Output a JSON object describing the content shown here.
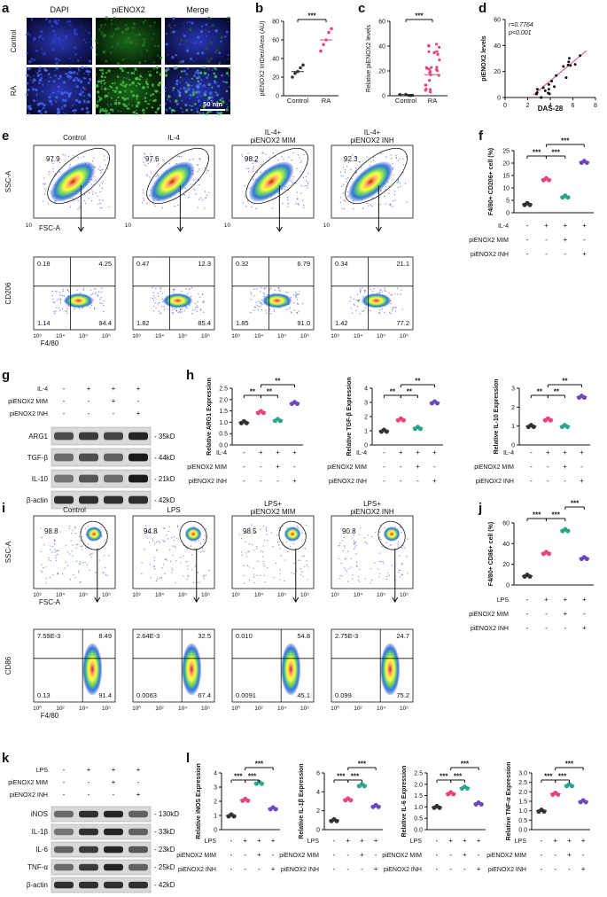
{
  "panels": {
    "a": {
      "label": "a",
      "columns": [
        "DAPI",
        "piENOX2",
        "Merge"
      ],
      "rows": [
        "Control",
        "RA"
      ],
      "scale_bar": "50 nm"
    },
    "b": {
      "label": "b",
      "chart_data": {
        "type": "scatter",
        "ylabel": "piENOX2 IntDen/Area (AU)",
        "categories": [
          "Control",
          "RA"
        ],
        "yticks": [
          "0",
          "20",
          "40",
          "60",
          "80"
        ],
        "ylim": [
          0,
          80
        ],
        "means": [
          26,
          60
        ],
        "significance": "***"
      }
    },
    "c": {
      "label": "c",
      "chart_data": {
        "type": "scatter",
        "ylabel": "Relative piENOX2 levels",
        "categories": [
          "Control",
          "RA"
        ],
        "yticks": [
          "0",
          "20",
          "40",
          "60"
        ],
        "ylim": [
          0,
          60
        ],
        "means": [
          1,
          17
        ],
        "significance": "***"
      }
    },
    "d": {
      "label": "d",
      "chart_data": {
        "type": "scatter",
        "xlabel": "DAS-28",
        "ylabel": "piENOX2 levels",
        "xticks": [
          "0",
          "2",
          "4",
          "6",
          "8"
        ],
        "yticks": [
          "0",
          "20",
          "40",
          "60"
        ],
        "annot_r": "r=0.7764",
        "annot_p": "p<0.001"
      }
    },
    "e": {
      "label": "e",
      "groups": [
        "Control",
        "IL-4",
        "IL-4+ piENOX2 MIM",
        "IL-4+ piENOX2 INH"
      ],
      "top_gate": [
        "97.9",
        "97.6",
        "98.2",
        "92.3"
      ],
      "top_xlabel": "FSC-A",
      "top_ylabel": "SSC-A",
      "bottom_xlabel": "F4/80",
      "bottom_ylabel": "CD206",
      "quadrants": [
        {
          "ul": "0.18",
          "ur": "4.25",
          "ll": "1.14",
          "lr": "94.4"
        },
        {
          "ul": "0.47",
          "ur": "12.3",
          "ll": "1.82",
          "lr": "85.4"
        },
        {
          "ul": "0.32",
          "ur": "6.79",
          "ll": "1.85",
          "lr": "91.0"
        },
        {
          "ul": "0.34",
          "ur": "21.1",
          "ll": "1.42",
          "lr": "77.2"
        }
      ]
    },
    "f": {
      "label": "f",
      "chart_data": {
        "type": "scatter",
        "ylabel": "F4/80+ CD206+ cell (%)",
        "yticks": [
          "0",
          "5",
          "10",
          "15",
          "20",
          "25"
        ],
        "ylim": [
          0,
          25
        ],
        "values": [
          3.5,
          13.5,
          6.5,
          20.5
        ],
        "colors": [
          "#333333",
          "#e8457a",
          "#2aa58a",
          "#6a4bbd"
        ]
      },
      "row_labels": [
        "IL-4",
        "piENOX2 MIM",
        "piENOX2 INH"
      ],
      "signs": [
        [
          "-",
          "+",
          "+",
          "+"
        ],
        [
          "-",
          "-",
          "+",
          "-"
        ],
        [
          "-",
          "-",
          "-",
          "+"
        ]
      ]
    },
    "g": {
      "label": "g",
      "row_labels": [
        "IL-4",
        "piENOX2 MIM",
        "piENOX2 INH"
      ],
      "signs": [
        [
          "-",
          "+",
          "+",
          "+"
        ],
        [
          "-",
          "-",
          "+",
          "-"
        ],
        [
          "-",
          "-",
          "-",
          "+"
        ]
      ],
      "blots": [
        {
          "name": "ARG1",
          "size": "35kD"
        },
        {
          "name": "TGF-β",
          "size": "44kD"
        },
        {
          "name": "IL-10",
          "size": "21kD"
        },
        {
          "name": "β-actin",
          "size": "42kD"
        }
      ]
    },
    "h": {
      "label": "h",
      "charts": [
        {
          "ylabel": "Relative ARG1 Expression",
          "yticks": [
            "0.0",
            "0.5",
            "1.0",
            "1.5",
            "2.0",
            "2.5"
          ],
          "ylim": [
            0,
            2.5
          ],
          "values": [
            1.0,
            1.45,
            1.1,
            1.85
          ]
        },
        {
          "ylabel": "Relative TGF-β Expression",
          "yticks": [
            "0",
            "1",
            "2",
            "3",
            "4"
          ],
          "ylim": [
            0,
            4
          ],
          "values": [
            1.0,
            1.8,
            1.2,
            3.0
          ]
        },
        {
          "ylabel": "Relative IL-10 Expression",
          "yticks": [
            "0",
            "1",
            "2",
            "3"
          ],
          "ylim": [
            0,
            3
          ],
          "values": [
            1.0,
            1.35,
            1.0,
            2.55
          ]
        }
      ],
      "row_labels": [
        "IL-4",
        "piENOX2 MIM",
        "piENOX2 INH"
      ]
    },
    "i": {
      "label": "i",
      "groups": [
        "Control",
        "LPS",
        "LPS+ piENOX2 MIM",
        "LPS+ piENOX2 INH"
      ],
      "top_gate": [
        "98.8",
        "94.8",
        "98.5",
        "90.8"
      ],
      "top_xlabel": "FSC-A",
      "top_ylabel": "SSC-A",
      "bottom_xlabel": "F4/80",
      "bottom_ylabel": "CD86",
      "quadrants": [
        {
          "ul": "7.59E-3",
          "ur": "8.49",
          "ll": "0.13",
          "lr": "91.4"
        },
        {
          "ul": "2.64E-3",
          "ur": "32.5",
          "ll": "0.0063",
          "lr": "67.4"
        },
        {
          "ul": "0.010",
          "ur": "54.8",
          "ll": "0.0091",
          "lr": "45.1"
        },
        {
          "ul": "2.75E-3",
          "ur": "24.7",
          "ll": "0.099",
          "lr": "75.2"
        }
      ]
    },
    "j": {
      "label": "j",
      "chart_data": {
        "type": "scatter",
        "ylabel": "F4/80+ CD86+ cell (%)",
        "yticks": [
          "0",
          "20",
          "40",
          "60"
        ],
        "ylim": [
          0,
          60
        ],
        "values": [
          9,
          31,
          53,
          26
        ],
        "colors": [
          "#333333",
          "#e8457a",
          "#2aa58a",
          "#6a4bbd"
        ]
      },
      "row_labels": [
        "LPS",
        "piENOX2 MIM",
        "piENOX2 INH"
      ]
    },
    "k": {
      "label": "k",
      "row_labels": [
        "LPS",
        "piENOX2 MIM",
        "piENOX2 INH"
      ],
      "blots": [
        {
          "name": "iNOS",
          "size": "130kD"
        },
        {
          "name": "IL-1β",
          "size": "33kD"
        },
        {
          "name": "IL-6",
          "size": "23kD"
        },
        {
          "name": "TNF-α",
          "size": "25kD"
        },
        {
          "name": "β-actin",
          "size": "42kD"
        }
      ]
    },
    "l": {
      "label": "l",
      "charts": [
        {
          "ylabel": "Relative iNOS Expression",
          "yticks": [
            "0",
            "1",
            "2",
            "3",
            "4"
          ],
          "ylim": [
            0,
            4
          ],
          "values": [
            1.0,
            2.1,
            3.3,
            1.5
          ]
        },
        {
          "ylabel": "Relative IL-1β Expression",
          "yticks": [
            "0",
            "2",
            "4",
            "6"
          ],
          "ylim": [
            0,
            6
          ],
          "values": [
            1.0,
            3.2,
            4.7,
            2.5
          ]
        },
        {
          "ylabel": "Relative IL-6 Expression",
          "yticks": [
            "0.0",
            "0.5",
            "1.0",
            "1.5",
            "2.0",
            "2.5"
          ],
          "ylim": [
            0,
            2.5
          ],
          "values": [
            1.0,
            1.6,
            1.85,
            1.15
          ]
        },
        {
          "ylabel": "Relative TNF-α Expression",
          "yticks": [
            "0.0",
            "0.5",
            "1.0",
            "1.5",
            "2.0",
            "2.5",
            "3.0"
          ],
          "ylim": [
            0,
            3
          ],
          "values": [
            1.0,
            1.9,
            2.35,
            1.5
          ]
        }
      ],
      "row_labels": [
        "LPS",
        "piENOX2 MIM",
        "piENOX2 INH"
      ]
    }
  },
  "signs_std": [
    [
      "-",
      "+",
      "+",
      "+"
    ],
    [
      "-",
      "-",
      "+",
      "-"
    ],
    [
      "-",
      "-",
      "-",
      "+"
    ]
  ],
  "sig": {
    "three": "***",
    "two": "**",
    "one": "*"
  }
}
